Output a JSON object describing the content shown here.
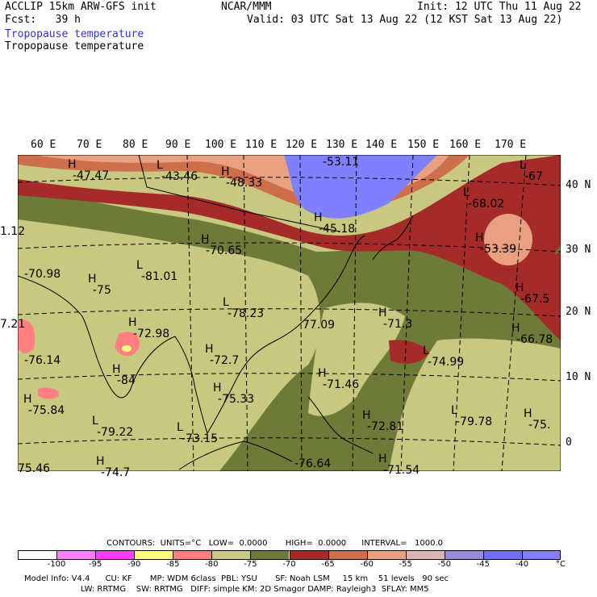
{
  "header": {
    "model": "ACCLIP 15km ARW-GFS init",
    "org": "NCAR/MMM",
    "init": "Init: 12 UTC Thu 11 Aug 22",
    "fcst": "Fcst:   39 h",
    "valid": "Valid: 03 UTC Sat 13 Aug 22 (12 KST Sat 13 Aug 22)",
    "field1": "Tropopause temperature",
    "field2": "Tropopause temperature"
  },
  "longitudes": [
    "60 E",
    "70 E",
    "80 E",
    "90 E",
    "100 E",
    "110 E",
    "120 E",
    "130 E",
    "140 E",
    "150 E",
    "160 E",
    "170 E"
  ],
  "latitudes": [
    "40 N",
    "30 N",
    "20 N",
    "10 N",
    "0"
  ],
  "map_labels": [
    {
      "hl": "H",
      "v": "-47.47"
    },
    {
      "hl": "L",
      "v": "-43.46"
    },
    {
      "hl": "H",
      "v": "-48.33"
    },
    {
      "hl": "",
      "v": "-53.11"
    },
    {
      "hl": "L",
      "v": "-67"
    },
    {
      "hl": "L",
      "v": "-68.02"
    },
    {
      "hl": "H",
      "v": "-45.18"
    },
    {
      "hl": "H",
      "v": "-53.39"
    },
    {
      "hl": "",
      "v": "1.12"
    },
    {
      "hl": "H",
      "v": "-70.65"
    },
    {
      "hl": "L",
      "v": "-81.01"
    },
    {
      "hl": "",
      "v": "-70.98"
    },
    {
      "hl": "H",
      "v": "-75"
    },
    {
      "hl": "L",
      "v": "-78.23"
    },
    {
      "hl": "H",
      "v": "-67.5"
    },
    {
      "hl": "H",
      "v": "-72.98"
    },
    {
      "hl": "",
      "v": "7.21"
    },
    {
      "hl": "",
      "v": "77.09"
    },
    {
      "hl": "H",
      "v": "-71.3"
    },
    {
      "hl": "H",
      "v": "-66.78"
    },
    {
      "hl": "L",
      "v": "-74.99"
    },
    {
      "hl": "H",
      "v": "-72.7"
    },
    {
      "hl": "",
      "v": "-76.14"
    },
    {
      "hl": "H",
      "v": "-84"
    },
    {
      "hl": "H",
      "v": "-71.46"
    },
    {
      "hl": "H",
      "v": "-75.33"
    },
    {
      "hl": "H",
      "v": "-75.84"
    },
    {
      "hl": "L",
      "v": "-79.22"
    },
    {
      "hl": "L",
      "v": "-73.15"
    },
    {
      "hl": "H",
      "v": "-72.81"
    },
    {
      "hl": "L",
      "v": "-79.78"
    },
    {
      "hl": "H",
      "v": "-75."
    },
    {
      "hl": "H",
      "v": "-71.54"
    },
    {
      "hl": "",
      "v": "-76.64"
    },
    {
      "hl": "H",
      "v": "-74.7"
    },
    {
      "hl": "",
      "v": "75.46"
    }
  ],
  "contours_line": "CONTOURS:  UNITS=°C   LOW=  0.0000       HIGH=  0.0000      INTERVAL=   1000.0",
  "legend": {
    "colors": [
      "#ffffff",
      "#ff80ff",
      "#ff40ff",
      "#ffff80",
      "#ff8080",
      "#c8c880",
      "#6e7a38",
      "#a52a2a",
      "#cc6f4a",
      "#e8a080",
      "#dcb4b4",
      "#9a8cdc",
      "#7070ee",
      "#8080ff"
    ],
    "ticks": [
      "-100",
      "-95",
      "-90",
      "-85",
      "-80",
      "-75",
      "-70",
      "-65",
      "-60",
      "-55",
      "-50",
      "-45",
      "-40",
      "°C"
    ]
  },
  "footer": {
    "line1": "Model Info: V4.4      CU: KF       MP: WDM 6class  PBL: YSU       SF: Noah LSM     15 km    51 levels   90 sec",
    "line2": "                      LW: RRTMG    SW: RRTMG   DIFF: simple KM: 2D Smagor DAMP: Rayleigh3  SFLAY: MM5"
  }
}
